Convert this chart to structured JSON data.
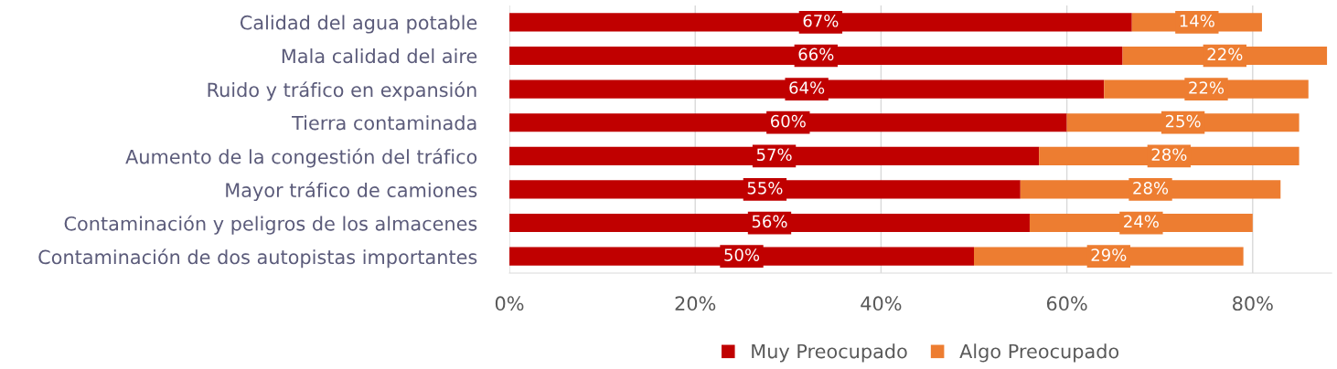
{
  "chart_data": {
    "type": "bar",
    "orientation": "horizontal",
    "stacked": true,
    "categories": [
      "Calidad del agua potable",
      "Mala calidad del aire",
      "Ruido y tráfico en expansión",
      "Tierra contaminada",
      "Aumento de la congestión del tráfico",
      "Mayor tráfico de camiones",
      "Contaminación y peligros de los almacenes",
      "Contaminación de dos autopistas importantes"
    ],
    "series": [
      {
        "name": "Muy Preocupado",
        "color": "#c00000",
        "values": [
          67,
          66,
          64,
          60,
          57,
          55,
          56,
          50
        ],
        "value_labels": [
          "67%",
          "66%",
          "64%",
          "60%",
          "57%",
          "55%",
          "56%",
          "50%"
        ]
      },
      {
        "name": "Algo Preocupado",
        "color": "#ed7d31",
        "values": [
          14,
          22,
          22,
          25,
          28,
          28,
          24,
          29
        ],
        "value_labels": [
          "14%",
          "22%",
          "22%",
          "25%",
          "28%",
          "28%",
          "24%",
          "29%"
        ]
      }
    ],
    "xlim": [
      0,
      88.5
    ],
    "xticks": [
      {
        "value": 0,
        "label": "0%"
      },
      {
        "value": 20,
        "label": "20%"
      },
      {
        "value": 40,
        "label": "40%"
      },
      {
        "value": 60,
        "label": "60%"
      },
      {
        "value": 80,
        "label": "80%"
      }
    ],
    "grid": "x",
    "legend": "bottom"
  }
}
